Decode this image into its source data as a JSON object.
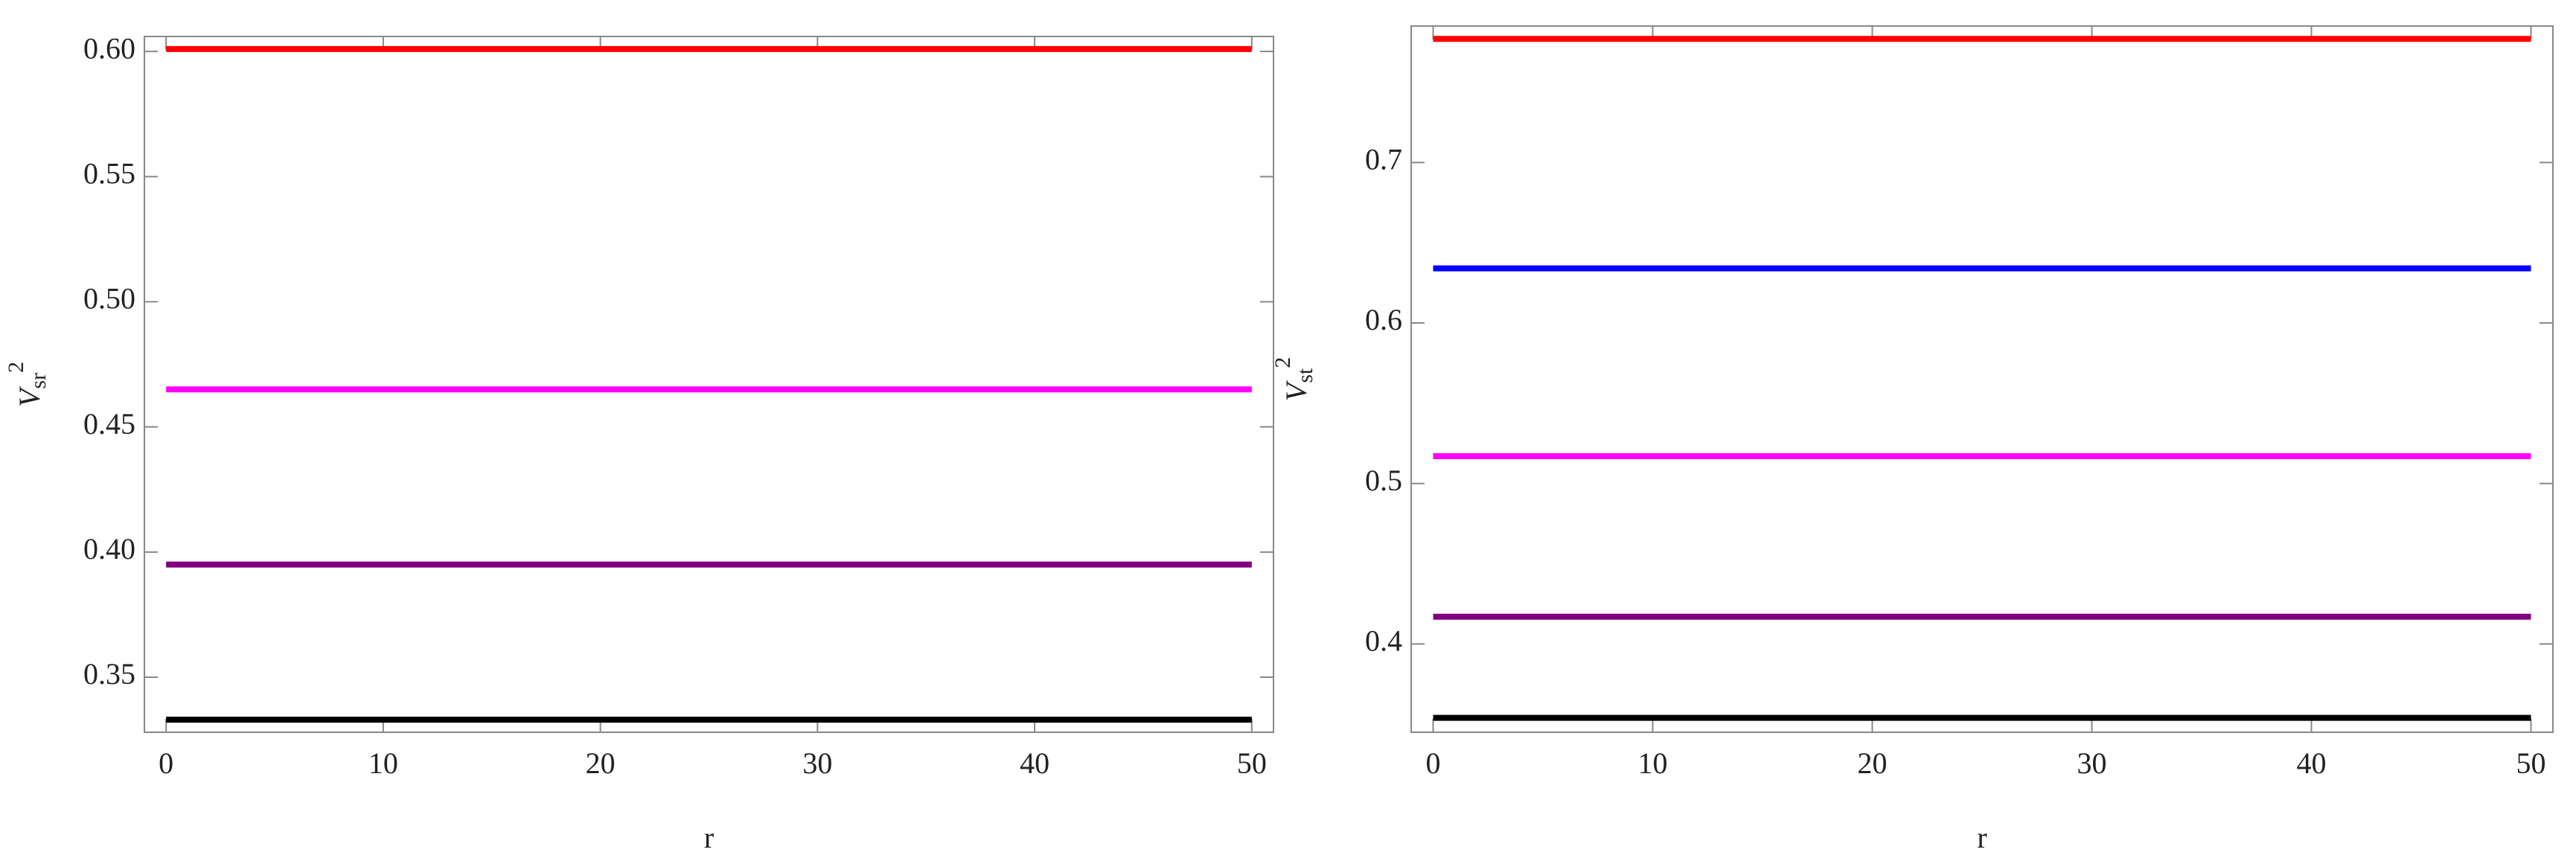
{
  "chart_data": [
    {
      "type": "line",
      "xlabel": "r",
      "ylabel": {
        "base": "V",
        "sub": "sr",
        "sup": "2"
      },
      "x": [
        0,
        50
      ],
      "xlim": [
        -1,
        51
      ],
      "xticks": [
        0,
        10,
        20,
        30,
        40,
        50
      ],
      "ylim": [
        0.328,
        0.606
      ],
      "yticks": [
        0.35,
        {
          "value": 0.4,
          "label": "0.40"
        },
        0.45,
        {
          "value": 0.5,
          "label": "0.50"
        },
        0.55,
        {
          "value": 0.6,
          "label": "0.60"
        }
      ],
      "series": [
        {
          "color": "#ff0000",
          "values": [
            0.601,
            0.601
          ]
        },
        {
          "color": "#ff00ff",
          "values": [
            0.465,
            0.465
          ]
        },
        {
          "color": "#800080",
          "values": [
            0.395,
            0.395
          ]
        },
        {
          "color": "#000000",
          "values": [
            0.333,
            0.333
          ]
        }
      ]
    },
    {
      "type": "line",
      "xlabel": "r",
      "ylabel": {
        "base": "V",
        "sub": "st",
        "sup": "2"
      },
      "x": [
        0,
        50
      ],
      "xlim": [
        -1,
        51
      ],
      "xticks": [
        0,
        10,
        20,
        30,
        40,
        50
      ],
      "ylim": [
        0.345,
        0.785
      ],
      "yticks": [
        0.4,
        0.5,
        0.6,
        0.7
      ],
      "series": [
        {
          "color": "#ff0000",
          "values": [
            0.777,
            0.777
          ]
        },
        {
          "color": "#0000ff",
          "values": [
            0.634,
            0.634
          ]
        },
        {
          "color": "#ff00ff",
          "values": [
            0.517,
            0.517
          ]
        },
        {
          "color": "#800080",
          "values": [
            0.417,
            0.417
          ]
        },
        {
          "color": "#000000",
          "values": [
            0.354,
            0.354
          ]
        }
      ]
    }
  ]
}
